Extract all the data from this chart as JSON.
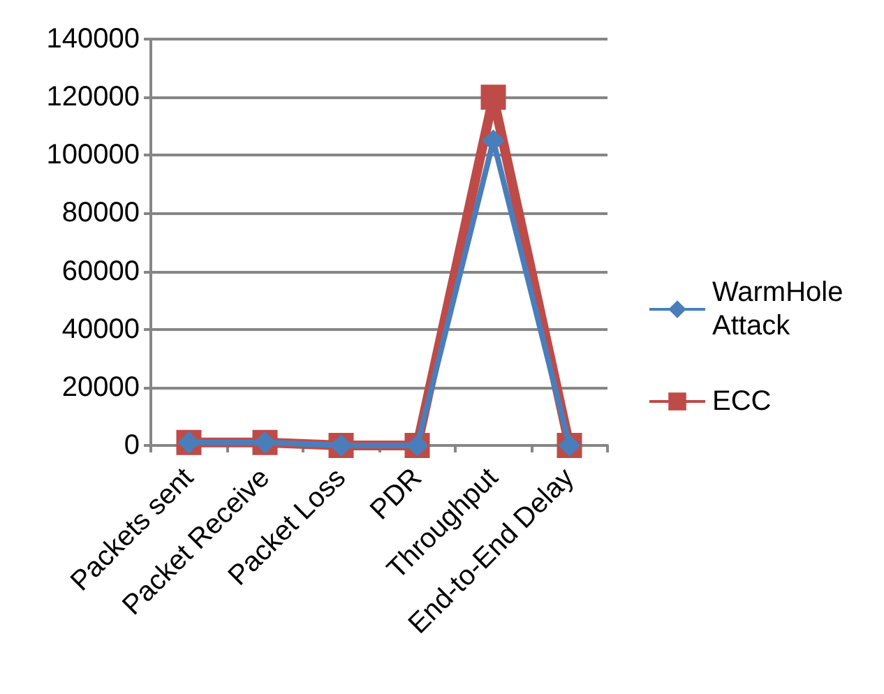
{
  "chart_data": {
    "type": "line",
    "categories": [
      "Packets sent",
      "Packet Receive",
      "Packet Loss",
      "PDR",
      "Throughput",
      "End-to-End Delay"
    ],
    "series": [
      {
        "name": "WarmHole Attack",
        "color": "#4a7ebb",
        "marker": "diamond",
        "values": [
          1000,
          1000,
          0,
          0,
          105000,
          0
        ]
      },
      {
        "name": "ECC",
        "color": "#be4b48",
        "marker": "square",
        "values": [
          1000,
          1000,
          0,
          0,
          120000,
          0
        ]
      }
    ],
    "ylim": [
      0,
      140000
    ],
    "yticks": [
      0,
      20000,
      40000,
      60000,
      80000,
      100000,
      120000,
      140000
    ],
    "grid": "y",
    "legend": "right",
    "line_style": "solid"
  }
}
